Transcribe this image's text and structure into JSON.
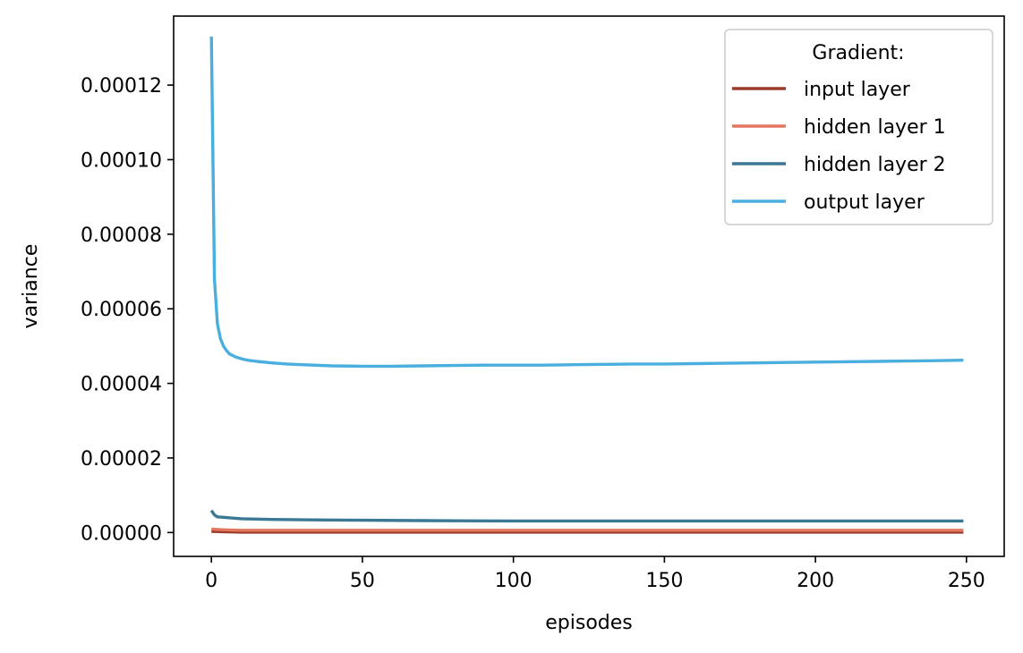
{
  "chart_data": {
    "type": "line",
    "title": "",
    "xlabel": "episodes",
    "ylabel": "variance",
    "xlim": [
      -12.5,
      262.5
    ],
    "ylim": [
      -6.4e-06,
      0.0001385
    ],
    "xticks": [
      0,
      50,
      100,
      150,
      200,
      250
    ],
    "xtick_labels": [
      "0",
      "50",
      "100",
      "150",
      "200",
      "250"
    ],
    "yticks": [
      0,
      2e-05,
      4e-05,
      6e-05,
      8e-05,
      0.0001,
      0.00012
    ],
    "ytick_labels": [
      "0.00000",
      "0.00002",
      "0.00004",
      "0.00006",
      "0.00008",
      "0.00010",
      "0.00012"
    ],
    "grid": false,
    "legend": {
      "title": "Gradient:",
      "placement": "top-right"
    },
    "series": [
      {
        "name": "input layer",
        "color": "#9c3b2c",
        "x": [
          0,
          5,
          10,
          20,
          50,
          100,
          150,
          200,
          249
        ],
        "y": [
          3e-07,
          2e-07,
          1e-07,
          1e-07,
          1e-07,
          1e-07,
          1e-07,
          1e-07,
          1e-07
        ]
      },
      {
        "name": "hidden layer 1",
        "color": "#e2775d",
        "x": [
          0,
          5,
          10,
          20,
          50,
          100,
          150,
          200,
          249
        ],
        "y": [
          9e-07,
          7e-07,
          6e-07,
          6e-07,
          6e-07,
          6e-07,
          6e-07,
          6e-07,
          6e-07
        ]
      },
      {
        "name": "hidden layer 2",
        "color": "#3a7895",
        "x": [
          0,
          1,
          2,
          5,
          10,
          20,
          30,
          50,
          70,
          100,
          150,
          200,
          249
        ],
        "y": [
          5.9e-06,
          4.7e-06,
          4.2e-06,
          4e-06,
          3.7e-06,
          3.5e-06,
          3.4e-06,
          3.3e-06,
          3.2e-06,
          3.1e-06,
          3.1e-06,
          3.1e-06,
          3.1e-06
        ]
      },
      {
        "name": "output layer",
        "color": "#4aaede",
        "x": [
          0,
          1,
          2,
          3,
          4,
          5,
          6,
          8,
          10,
          12,
          15,
          20,
          25,
          30,
          40,
          50,
          60,
          70,
          80,
          90,
          100,
          110,
          120,
          130,
          140,
          150,
          160,
          170,
          180,
          190,
          200,
          210,
          220,
          230,
          240,
          249
        ],
        "y": [
          0.000133,
          6.8e-05,
          5.6e-05,
          5.2e-05,
          5e-05,
          4.88e-05,
          4.79e-05,
          4.71e-05,
          4.66e-05,
          4.62e-05,
          4.59e-05,
          4.55e-05,
          4.52e-05,
          4.5e-05,
          4.47e-05,
          4.46e-05,
          4.46e-05,
          4.47e-05,
          4.48e-05,
          4.49e-05,
          4.49e-05,
          4.49e-05,
          4.5e-05,
          4.51e-05,
          4.52e-05,
          4.52e-05,
          4.53e-05,
          4.54e-05,
          4.55e-05,
          4.56e-05,
          4.57e-05,
          4.58e-05,
          4.59e-05,
          4.6e-05,
          4.61e-05,
          4.62e-05
        ]
      }
    ]
  }
}
